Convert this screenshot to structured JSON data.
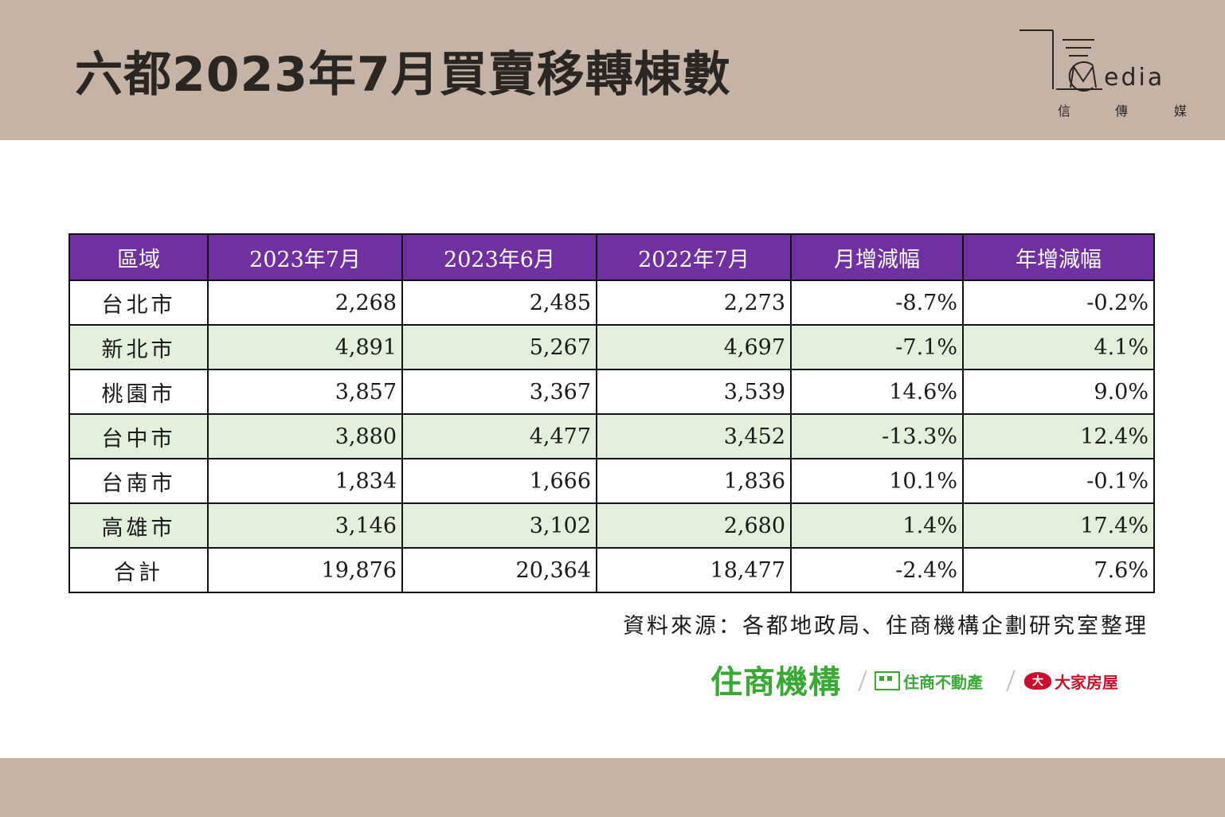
{
  "header": {
    "title": "六都2023年7月買賣移轉棟數"
  },
  "logo": {
    "word": "edia",
    "sub": [
      "信",
      "傳",
      "媒"
    ]
  },
  "table": {
    "headers": [
      "區域",
      "2023年7月",
      "2023年6月",
      "2022年7月",
      "月增減幅",
      "年增減幅"
    ],
    "rows": [
      {
        "region": "台北市",
        "jul2023": "2,268",
        "jun2023": "2,485",
        "jul2022": "2,273",
        "mom": "-8.7%",
        "yoy": "-0.2%"
      },
      {
        "region": "新北市",
        "jul2023": "4,891",
        "jun2023": "5,267",
        "jul2022": "4,697",
        "mom": "-7.1%",
        "yoy": "4.1%"
      },
      {
        "region": "桃園市",
        "jul2023": "3,857",
        "jun2023": "3,367",
        "jul2022": "3,539",
        "mom": "14.6%",
        "yoy": "9.0%"
      },
      {
        "region": "台中市",
        "jul2023": "3,880",
        "jun2023": "4,477",
        "jul2022": "3,452",
        "mom": "-13.3%",
        "yoy": "12.4%"
      },
      {
        "region": "台南市",
        "jul2023": "1,834",
        "jun2023": "1,666",
        "jul2022": "1,836",
        "mom": "10.1%",
        "yoy": "-0.1%"
      },
      {
        "region": "高雄市",
        "jul2023": "3,146",
        "jun2023": "3,102",
        "jul2022": "2,680",
        "mom": "1.4%",
        "yoy": "17.4%"
      },
      {
        "region": "合計",
        "jul2023": "19,876",
        "jun2023": "20,364",
        "jul2022": "18,477",
        "mom": "-2.4%",
        "yoy": "7.6%"
      }
    ]
  },
  "source": "資料來源：各都地政局、住商機構企劃研究室整理",
  "brands": {
    "primary": "住商機構",
    "secondary": "住商不動產",
    "tertiary": "大家房屋",
    "tertiary_mark": "大"
  },
  "colors": {
    "header_band": "#c5b4a6",
    "table_header": "#7030a0",
    "row_stripe": "#e2efda",
    "brand_green": "#3aa835",
    "brand_red": "#c8102e"
  }
}
